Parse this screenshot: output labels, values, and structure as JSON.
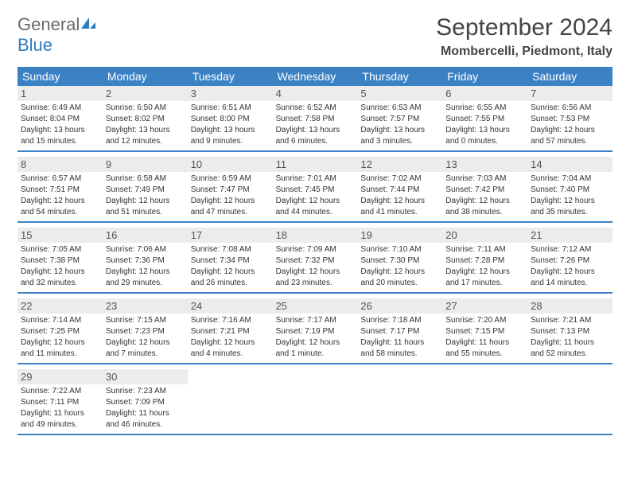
{
  "brand": {
    "part1": "General",
    "part2": "Blue"
  },
  "title": "September 2024",
  "location": "Mombercelli, Piedmont, Italy",
  "colors": {
    "header_bg": "#3b82c4",
    "daynum_bg": "#ececec",
    "border": "#3b82c4",
    "brand_blue": "#2f7bbf",
    "brand_gray": "#6a6a6a",
    "text": "#222222",
    "bg": "#ffffff"
  },
  "weekdays": [
    "Sunday",
    "Monday",
    "Tuesday",
    "Wednesday",
    "Thursday",
    "Friday",
    "Saturday"
  ],
  "days": [
    {
      "n": 1,
      "sr": "Sunrise: 6:49 AM",
      "ss": "Sunset: 8:04 PM",
      "d1": "Daylight: 13 hours",
      "d2": "and 15 minutes."
    },
    {
      "n": 2,
      "sr": "Sunrise: 6:50 AM",
      "ss": "Sunset: 8:02 PM",
      "d1": "Daylight: 13 hours",
      "d2": "and 12 minutes."
    },
    {
      "n": 3,
      "sr": "Sunrise: 6:51 AM",
      "ss": "Sunset: 8:00 PM",
      "d1": "Daylight: 13 hours",
      "d2": "and 9 minutes."
    },
    {
      "n": 4,
      "sr": "Sunrise: 6:52 AM",
      "ss": "Sunset: 7:58 PM",
      "d1": "Daylight: 13 hours",
      "d2": "and 6 minutes."
    },
    {
      "n": 5,
      "sr": "Sunrise: 6:53 AM",
      "ss": "Sunset: 7:57 PM",
      "d1": "Daylight: 13 hours",
      "d2": "and 3 minutes."
    },
    {
      "n": 6,
      "sr": "Sunrise: 6:55 AM",
      "ss": "Sunset: 7:55 PM",
      "d1": "Daylight: 13 hours",
      "d2": "and 0 minutes."
    },
    {
      "n": 7,
      "sr": "Sunrise: 6:56 AM",
      "ss": "Sunset: 7:53 PM",
      "d1": "Daylight: 12 hours",
      "d2": "and 57 minutes."
    },
    {
      "n": 8,
      "sr": "Sunrise: 6:57 AM",
      "ss": "Sunset: 7:51 PM",
      "d1": "Daylight: 12 hours",
      "d2": "and 54 minutes."
    },
    {
      "n": 9,
      "sr": "Sunrise: 6:58 AM",
      "ss": "Sunset: 7:49 PM",
      "d1": "Daylight: 12 hours",
      "d2": "and 51 minutes."
    },
    {
      "n": 10,
      "sr": "Sunrise: 6:59 AM",
      "ss": "Sunset: 7:47 PM",
      "d1": "Daylight: 12 hours",
      "d2": "and 47 minutes."
    },
    {
      "n": 11,
      "sr": "Sunrise: 7:01 AM",
      "ss": "Sunset: 7:45 PM",
      "d1": "Daylight: 12 hours",
      "d2": "and 44 minutes."
    },
    {
      "n": 12,
      "sr": "Sunrise: 7:02 AM",
      "ss": "Sunset: 7:44 PM",
      "d1": "Daylight: 12 hours",
      "d2": "and 41 minutes."
    },
    {
      "n": 13,
      "sr": "Sunrise: 7:03 AM",
      "ss": "Sunset: 7:42 PM",
      "d1": "Daylight: 12 hours",
      "d2": "and 38 minutes."
    },
    {
      "n": 14,
      "sr": "Sunrise: 7:04 AM",
      "ss": "Sunset: 7:40 PM",
      "d1": "Daylight: 12 hours",
      "d2": "and 35 minutes."
    },
    {
      "n": 15,
      "sr": "Sunrise: 7:05 AM",
      "ss": "Sunset: 7:38 PM",
      "d1": "Daylight: 12 hours",
      "d2": "and 32 minutes."
    },
    {
      "n": 16,
      "sr": "Sunrise: 7:06 AM",
      "ss": "Sunset: 7:36 PM",
      "d1": "Daylight: 12 hours",
      "d2": "and 29 minutes."
    },
    {
      "n": 17,
      "sr": "Sunrise: 7:08 AM",
      "ss": "Sunset: 7:34 PM",
      "d1": "Daylight: 12 hours",
      "d2": "and 26 minutes."
    },
    {
      "n": 18,
      "sr": "Sunrise: 7:09 AM",
      "ss": "Sunset: 7:32 PM",
      "d1": "Daylight: 12 hours",
      "d2": "and 23 minutes."
    },
    {
      "n": 19,
      "sr": "Sunrise: 7:10 AM",
      "ss": "Sunset: 7:30 PM",
      "d1": "Daylight: 12 hours",
      "d2": "and 20 minutes."
    },
    {
      "n": 20,
      "sr": "Sunrise: 7:11 AM",
      "ss": "Sunset: 7:28 PM",
      "d1": "Daylight: 12 hours",
      "d2": "and 17 minutes."
    },
    {
      "n": 21,
      "sr": "Sunrise: 7:12 AM",
      "ss": "Sunset: 7:26 PM",
      "d1": "Daylight: 12 hours",
      "d2": "and 14 minutes."
    },
    {
      "n": 22,
      "sr": "Sunrise: 7:14 AM",
      "ss": "Sunset: 7:25 PM",
      "d1": "Daylight: 12 hours",
      "d2": "and 11 minutes."
    },
    {
      "n": 23,
      "sr": "Sunrise: 7:15 AM",
      "ss": "Sunset: 7:23 PM",
      "d1": "Daylight: 12 hours",
      "d2": "and 7 minutes."
    },
    {
      "n": 24,
      "sr": "Sunrise: 7:16 AM",
      "ss": "Sunset: 7:21 PM",
      "d1": "Daylight: 12 hours",
      "d2": "and 4 minutes."
    },
    {
      "n": 25,
      "sr": "Sunrise: 7:17 AM",
      "ss": "Sunset: 7:19 PM",
      "d1": "Daylight: 12 hours",
      "d2": "and 1 minute."
    },
    {
      "n": 26,
      "sr": "Sunrise: 7:18 AM",
      "ss": "Sunset: 7:17 PM",
      "d1": "Daylight: 11 hours",
      "d2": "and 58 minutes."
    },
    {
      "n": 27,
      "sr": "Sunrise: 7:20 AM",
      "ss": "Sunset: 7:15 PM",
      "d1": "Daylight: 11 hours",
      "d2": "and 55 minutes."
    },
    {
      "n": 28,
      "sr": "Sunrise: 7:21 AM",
      "ss": "Sunset: 7:13 PM",
      "d1": "Daylight: 11 hours",
      "d2": "and 52 minutes."
    },
    {
      "n": 29,
      "sr": "Sunrise: 7:22 AM",
      "ss": "Sunset: 7:11 PM",
      "d1": "Daylight: 11 hours",
      "d2": "and 49 minutes."
    },
    {
      "n": 30,
      "sr": "Sunrise: 7:23 AM",
      "ss": "Sunset: 7:09 PM",
      "d1": "Daylight: 11 hours",
      "d2": "and 46 minutes."
    }
  ]
}
